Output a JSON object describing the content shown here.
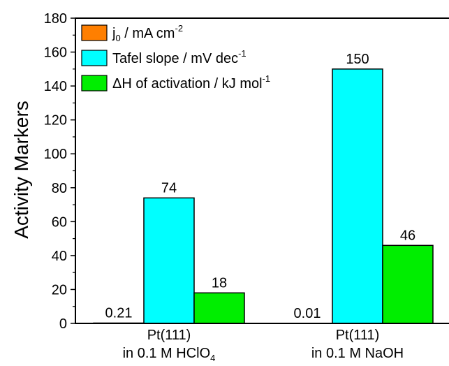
{
  "chart_data": {
    "type": "bar",
    "ylabel": "Activity Markers",
    "ylim": [
      0,
      180
    ],
    "yticks": [
      0,
      20,
      40,
      60,
      80,
      100,
      120,
      140,
      160,
      180
    ],
    "categories": [
      {
        "line1": "Pt(111)",
        "line2_main": "in 0.1 M HClO",
        "line2_sub": "4"
      },
      {
        "line1": "Pt(111)",
        "line2_main": "in 0.1 M NaOH",
        "line2_sub": ""
      }
    ],
    "series": [
      {
        "name_main": "j",
        "name_sub": "0",
        "name_rest": " / mA cm",
        "name_sup": "-2",
        "color": "#ff7f00",
        "values": [
          0.21,
          0.01
        ],
        "labels": [
          "0.21",
          "0.01"
        ]
      },
      {
        "name_main": "Tafel slope / mV dec",
        "name_sup": "-1",
        "color": "#00ffff",
        "values": [
          74,
          150
        ],
        "labels": [
          "74",
          "150"
        ]
      },
      {
        "name_main": "ΔH of activation / kJ mol",
        "name_sup": "-1",
        "color": "#00ee00",
        "values": [
          18,
          46
        ],
        "labels": [
          "18",
          "46"
        ]
      }
    ],
    "grid": false,
    "legend": "top-left"
  }
}
